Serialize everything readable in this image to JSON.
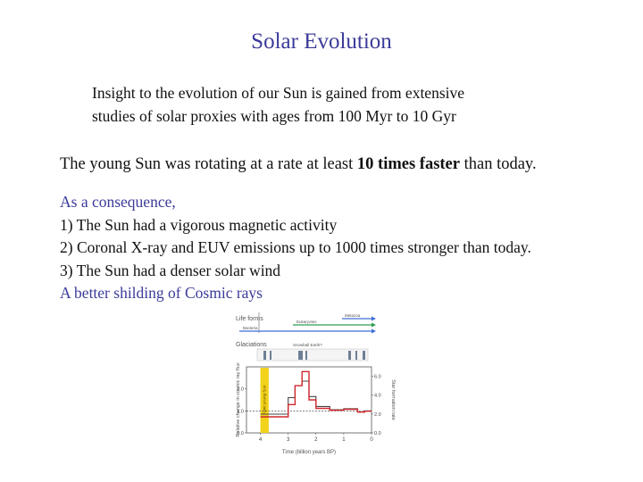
{
  "title": "Solar Evolution",
  "intro": {
    "line1": "Insight to the evolution of our Sun is gained from extensive",
    "line2": "studies of solar proxies with ages from 100 Myr to 10 Gyr"
  },
  "young_sun": {
    "prefix": "The young Sun was rotating at a rate at least ",
    "emphasis": "10 times faster",
    "suffix": " than today."
  },
  "consequences": {
    "intro": "As a consequence,",
    "items": [
      "1) The Sun had a vigorous magnetic activity",
      "2) Coronal X-ray and EUV emissions up to 1000 times stronger than today.",
      "3) The Sun had a denser solar wind"
    ],
    "conclusion": "A better shilding of Cosmic rays"
  },
  "colors": {
    "heading_blue": "#3b3b9a",
    "series_gray": "#444444",
    "series_red": "#d0282e",
    "highlight_yellow": "#f2d21b",
    "arrow_blue": "#3a6fd8",
    "arrow_green": "#2e9e52"
  },
  "figure": {
    "row_labels": [
      "Life forms",
      "Glaciations"
    ],
    "arrow_labels": [
      "Metazoa",
      "Eukaryotes",
      "Bacteria"
    ],
    "glaciation_note": "Snowball Earth?",
    "band_label": "Faint young Sun",
    "xlabel": "Time (billion years BP)",
    "ylabel_left": "Relative change in cosmic ray flux",
    "ylabel_right": "Star formation rate",
    "x_ticks": [
      "4",
      "3",
      "2",
      "1",
      "0"
    ],
    "y_left_ticks": [
      "0.0",
      "1.0",
      "2.0"
    ],
    "y_right_ticks": [
      "0.0",
      "2.0",
      "4.0",
      "6.0"
    ]
  },
  "chart_data": {
    "type": "line",
    "xlabel": "Time (billion years BP)",
    "ylabel": "Relative change in cosmic ray flux",
    "y2label": "Star formation rate",
    "xlim": [
      4.5,
      0
    ],
    "ylim": [
      0,
      3.0
    ],
    "y2lim": [
      0,
      7.0
    ],
    "grid": false,
    "series": [
      {
        "x": [
          4.0,
          3.5,
          3.0,
          2.75,
          2.5,
          2.25,
          2.0,
          1.5,
          1.0,
          0.5,
          0.25,
          0.0
        ],
        "y": [
          0.85,
          0.85,
          1.6,
          2.15,
          2.35,
          1.65,
          1.2,
          1.05,
          1.1,
          0.95,
          1.0,
          1.0
        ]
      },
      {
        "x": [
          4.0,
          3.5,
          3.0,
          2.75,
          2.5,
          2.25,
          2.0,
          1.5,
          1.0,
          0.5,
          0.25,
          0.0
        ],
        "y": [
          1.7,
          1.7,
          3.0,
          5.0,
          6.5,
          3.5,
          2.6,
          2.4,
          2.5,
          2.2,
          2.3,
          2.3
        ]
      }
    ],
    "reference_line": 1.0,
    "highlight_range_x": [
      4.0,
      3.7
    ]
  }
}
